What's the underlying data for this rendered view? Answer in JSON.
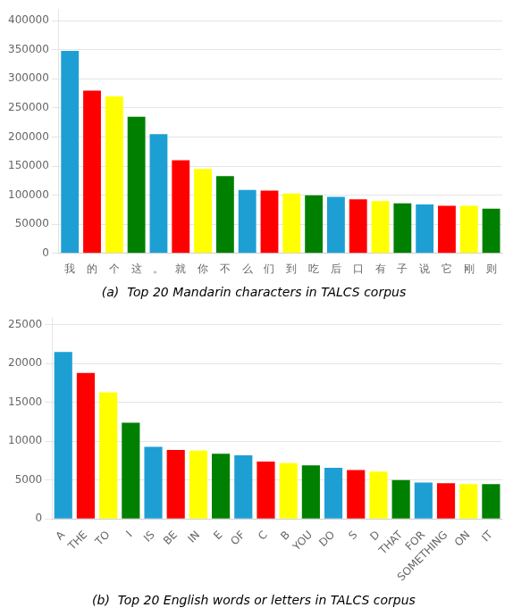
{
  "chart_data": [
    {
      "type": "bar",
      "title": "(a)  Top 20 Mandarin characters in TALCS corpus",
      "categories": [
        "我",
        "的",
        "个",
        "这",
        "。",
        "就",
        "你",
        "不",
        "么",
        "们",
        "到",
        "吃",
        "后",
        "口",
        "有",
        "子",
        "说",
        "它",
        "刚",
        "则"
      ],
      "values": [
        348000,
        280000,
        270000,
        235000,
        205000,
        160000,
        145000,
        133000,
        109000,
        108000,
        103000,
        100000,
        97000,
        93000,
        90000,
        86000,
        84000,
        82000,
        82000,
        77000
      ],
      "colors": [
        "#1E9FD4",
        "#FF0000",
        "#FFFF00",
        "#008000",
        "#1E9FD4",
        "#FF0000",
        "#FFFF00",
        "#008000",
        "#1E9FD4",
        "#FF0000",
        "#FFFF00",
        "#008000",
        "#1E9FD4",
        "#FF0000",
        "#FFFF00",
        "#008000",
        "#1E9FD4",
        "#FF0000",
        "#FFFF00",
        "#008000"
      ],
      "ylim": [
        0,
        420000
      ],
      "yticks": [
        0,
        50000,
        100000,
        150000,
        200000,
        250000,
        300000,
        350000,
        400000
      ],
      "grid": true
    },
    {
      "type": "bar",
      "title": "(b)  Top 20 English words or letters in TALCS corpus",
      "categories": [
        "A",
        "THE",
        "TO",
        "I",
        "IS",
        "BE",
        "IN",
        "E",
        "OF",
        "C",
        "B",
        "YOU",
        "DO",
        "S",
        "D",
        "THAT",
        "FOR",
        "SOMETHING",
        "ON",
        "IT"
      ],
      "values": [
        21500,
        18800,
        16300,
        12400,
        9300,
        8900,
        8800,
        8400,
        8200,
        7400,
        7200,
        6900,
        6600,
        6300,
        6100,
        5000,
        4700,
        4600,
        4500,
        4500
      ],
      "colors": [
        "#1E9FD4",
        "#FF0000",
        "#FFFF00",
        "#008000",
        "#1E9FD4",
        "#FF0000",
        "#FFFF00",
        "#008000",
        "#1E9FD4",
        "#FF0000",
        "#FFFF00",
        "#008000",
        "#1E9FD4",
        "#FF0000",
        "#FFFF00",
        "#008000",
        "#1E9FD4",
        "#FF0000",
        "#FFFF00",
        "#008000"
      ],
      "ylim": [
        0,
        26000
      ],
      "yticks": [
        0,
        5000,
        10000,
        15000,
        20000,
        25000
      ],
      "grid": true
    }
  ]
}
